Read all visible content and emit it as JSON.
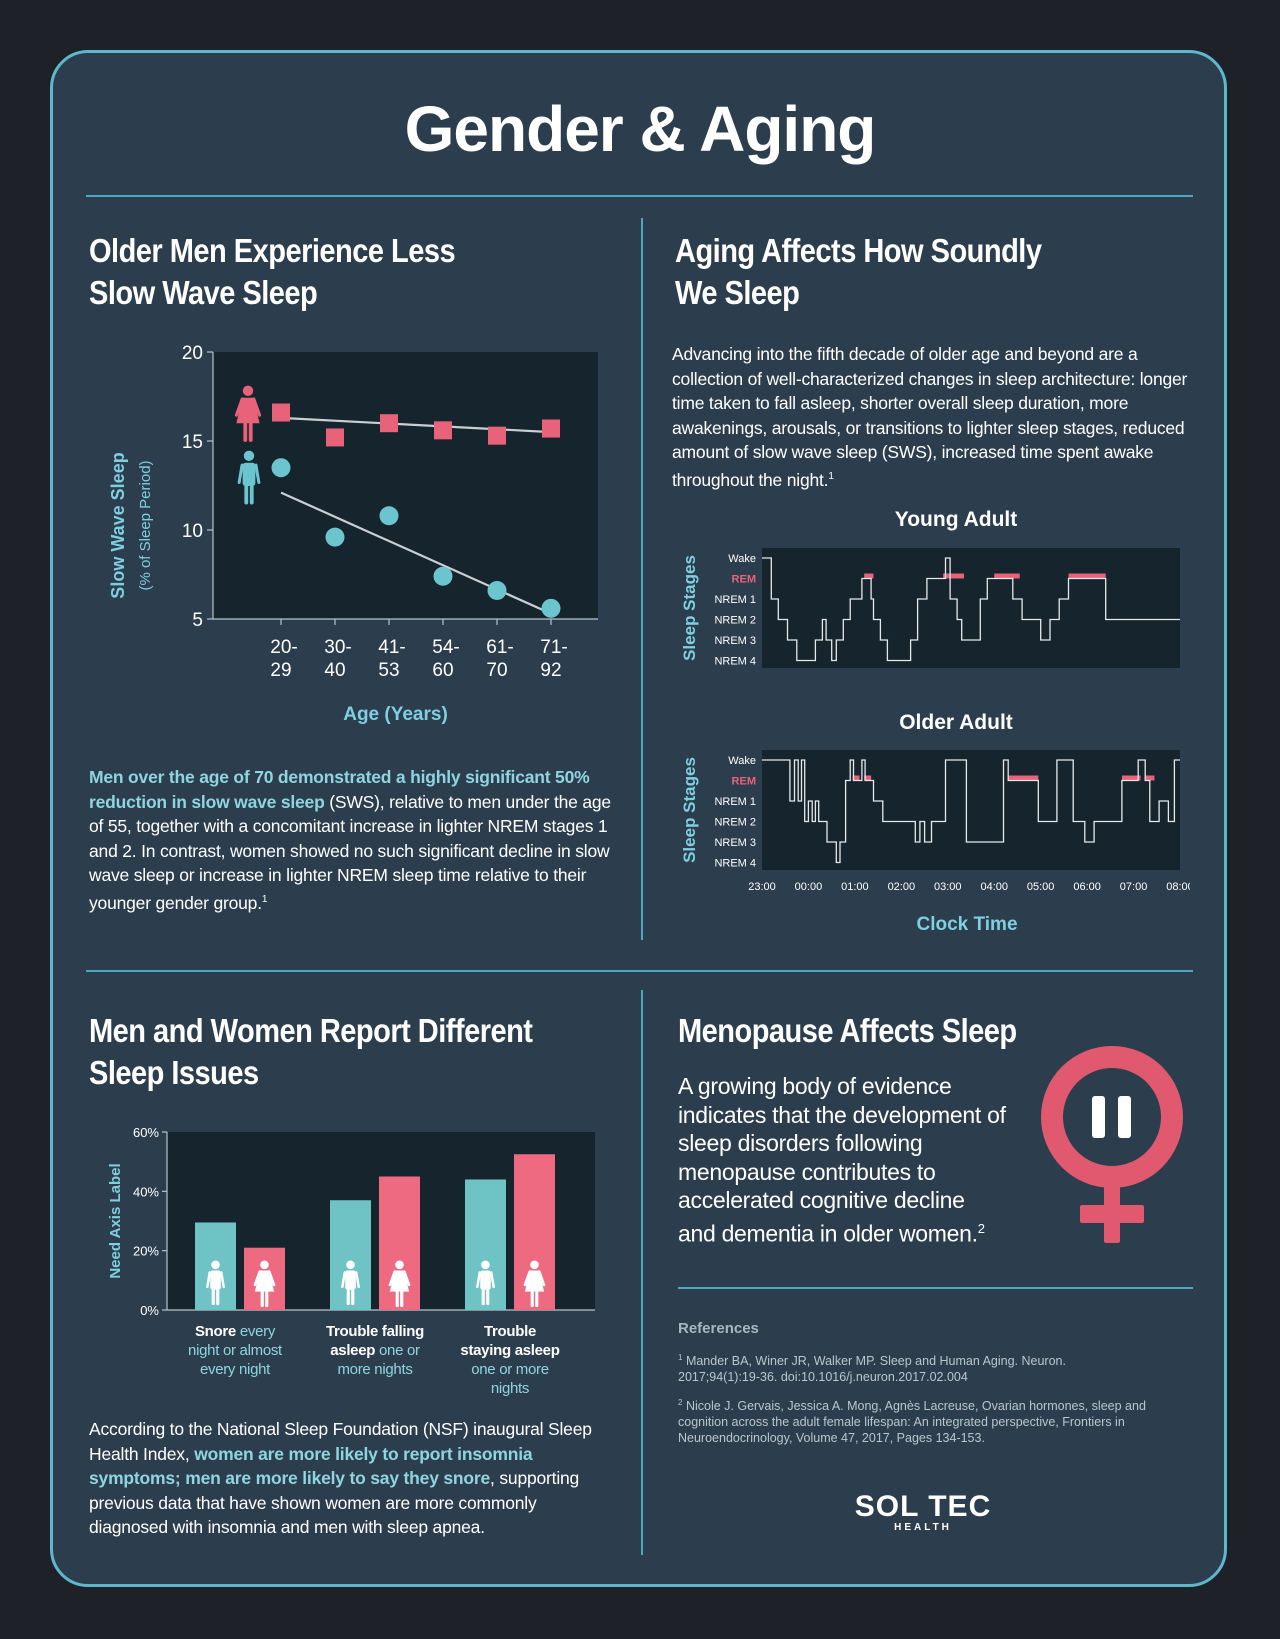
{
  "page_title": "Gender & Aging",
  "sections": {
    "sws": {
      "title_line1": "Older Men Experience Less",
      "title_line2": "Slow Wave Sleep",
      "bold": "Men over the age of 70 demonstrated a highly significant 50% reduction in slow wave sleep",
      "rest": " (SWS), relative to men under the age of 55, together with a concomitant increase in lighter NREM stages 1 and 2. In contrast, women showed no such significant decline in slow wave sleep or increase in lighter NREM sleep time relative to their younger gender group.",
      "sup": "1"
    },
    "aging": {
      "title_line1": "Aging Affects How Soundly",
      "title_line2": "We Sleep",
      "text": "Advancing into the fifth decade of older age and beyond are a collection of well-characterized changes in sleep architecture: longer time taken to fall asleep, shorter overall sleep duration, more awakenings, arousals, or transitions to lighter sleep stages, reduced amount of slow wave sleep (SWS), increased time spent awake throughout the night.",
      "sup": "1"
    },
    "issues": {
      "title_line1": "Men and Women Report Different",
      "title_line2": "Sleep Issues",
      "pre": "According to the National Sleep Foundation (NSF) inaugural Sleep Health Index, ",
      "bold": "women are more likely to report insomnia symptoms; men are more likely to say they snore",
      "post": ", supporting previous data that have shown women are more commonly diagnosed with insomnia and men with sleep apnea."
    },
    "meno": {
      "title": "Menopause Affects Sleep",
      "text": "A growing body of evidence indicates that the development of sleep disorders following menopause contributes to accelerated cognitive decline and dementia in older women.",
      "sup": "2"
    }
  },
  "references": {
    "title": "References",
    "items": [
      {
        "num": "1",
        "text": "Mander BA, Winer JR, Walker MP. Sleep and Human Aging. Neuron. 2017;94(1):19-36. doi:10.1016/j.neuron.2017.02.004"
      },
      {
        "num": "2",
        "text": "Nicole J. Gervais, Jessica A. Mong, Agnès Lacreuse, Ovarian hormones, sleep and cognition across the adult female lifespan: An integrated perspective, Frontiers in Neuroendocrinology, Volume 47, 2017, Pages 134-153."
      }
    ]
  },
  "logo": {
    "main": "SOL TEC",
    "sub": "HEALTH"
  },
  "colors": {
    "female": "#e8637a",
    "male": "#6cc4cf",
    "bar_male": "#6fc3c4",
    "bar_female": "#ee6a80",
    "plot_bg": "#15242d",
    "card": "#2c3e4d",
    "accent": "#4ea7bd"
  },
  "chart_data": [
    {
      "type": "scatter",
      "ylabel": "Slow Wave Sleep",
      "ylabel_sub": "(% of Sleep Period)",
      "xlabel": "Age (Years)",
      "ylim": [
        5,
        20
      ],
      "yticks": [
        "5",
        "10",
        "15",
        "20"
      ],
      "categories": [
        {
          "top": "20-",
          "bottom": "29"
        },
        {
          "top": "30-",
          "bottom": "40"
        },
        {
          "top": "41-",
          "bottom": "53"
        },
        {
          "top": "54-",
          "bottom": "60"
        },
        {
          "top": "61-",
          "bottom": "70"
        },
        {
          "top": "71-",
          "bottom": "92"
        }
      ],
      "series": [
        {
          "key": "female",
          "values": [
            16.6,
            15.2,
            16.0,
            15.6,
            15.3,
            15.7
          ],
          "trend": [
            16.3,
            15.5
          ]
        },
        {
          "key": "male",
          "values": [
            13.5,
            9.6,
            10.8,
            7.4,
            6.6,
            5.6
          ],
          "trend": [
            12.1,
            5.3
          ]
        }
      ]
    },
    {
      "type": "line",
      "title": "Young Adult",
      "ylabel": "Sleep Stages",
      "stages": [
        "Wake",
        "REM",
        "NREM 1",
        "NREM 2",
        "NREM 3",
        "NREM 4"
      ],
      "x_start": 23.0,
      "x_end": 32.0,
      "steps": [
        [
          23.0,
          0
        ],
        [
          23.2,
          0
        ],
        [
          23.2,
          2
        ],
        [
          23.35,
          2
        ],
        [
          23.35,
          3
        ],
        [
          23.55,
          3
        ],
        [
          23.55,
          4
        ],
        [
          23.75,
          4
        ],
        [
          23.75,
          5
        ],
        [
          24.15,
          5
        ],
        [
          24.15,
          4
        ],
        [
          24.3,
          4
        ],
        [
          24.3,
          3
        ],
        [
          24.38,
          3
        ],
        [
          24.38,
          4
        ],
        [
          24.5,
          4
        ],
        [
          24.5,
          5
        ],
        [
          24.6,
          5
        ],
        [
          24.6,
          4
        ],
        [
          24.75,
          4
        ],
        [
          24.75,
          3
        ],
        [
          24.9,
          3
        ],
        [
          24.9,
          2
        ],
        [
          25.15,
          2
        ],
        [
          25.15,
          1
        ],
        [
          25.35,
          1
        ],
        [
          25.35,
          2
        ],
        [
          25.4,
          2
        ],
        [
          25.4,
          3
        ],
        [
          25.55,
          3
        ],
        [
          25.55,
          4
        ],
        [
          25.7,
          4
        ],
        [
          25.7,
          5
        ],
        [
          26.2,
          5
        ],
        [
          26.2,
          4
        ],
        [
          26.35,
          4
        ],
        [
          26.35,
          2
        ],
        [
          26.55,
          2
        ],
        [
          26.55,
          1
        ],
        [
          26.95,
          1
        ],
        [
          26.95,
          0
        ],
        [
          27.05,
          0
        ],
        [
          27.05,
          2
        ],
        [
          27.2,
          2
        ],
        [
          27.2,
          3
        ],
        [
          27.3,
          3
        ],
        [
          27.3,
          4
        ],
        [
          27.7,
          4
        ],
        [
          27.7,
          2
        ],
        [
          27.85,
          2
        ],
        [
          27.85,
          1
        ],
        [
          28.4,
          1
        ],
        [
          28.4,
          2
        ],
        [
          28.6,
          2
        ],
        [
          28.6,
          3
        ],
        [
          29.0,
          3
        ],
        [
          29.0,
          4
        ],
        [
          29.2,
          4
        ],
        [
          29.2,
          3
        ],
        [
          29.4,
          3
        ],
        [
          29.4,
          2
        ],
        [
          29.6,
          2
        ],
        [
          29.6,
          1
        ],
        [
          30.4,
          1
        ],
        [
          30.4,
          3
        ],
        [
          32.0,
          3
        ]
      ],
      "rem": [
        [
          25.2,
          25.4
        ],
        [
          26.9,
          27.35
        ],
        [
          28.0,
          28.55
        ],
        [
          29.6,
          30.4
        ]
      ]
    },
    {
      "type": "line",
      "title": "Older Adult",
      "ylabel": "Sleep Stages",
      "xlabel": "Clock Time",
      "stages": [
        "Wake",
        "REM",
        "NREM 1",
        "NREM 2",
        "NREM 3",
        "NREM 4"
      ],
      "x_start": 23.0,
      "x_end": 32.0,
      "xticks": [
        "23:00",
        "00:00",
        "01:00",
        "02:00",
        "03:00",
        "04:00",
        "05:00",
        "06:00",
        "07:00",
        "08:00"
      ],
      "steps": [
        [
          23.0,
          0
        ],
        [
          23.6,
          0
        ],
        [
          23.6,
          2
        ],
        [
          23.7,
          2
        ],
        [
          23.7,
          0
        ],
        [
          23.78,
          0
        ],
        [
          23.78,
          2
        ],
        [
          23.85,
          2
        ],
        [
          23.85,
          0
        ],
        [
          23.92,
          0
        ],
        [
          23.92,
          3
        ],
        [
          24.0,
          3
        ],
        [
          24.0,
          2
        ],
        [
          24.08,
          2
        ],
        [
          24.08,
          3
        ],
        [
          24.15,
          3
        ],
        [
          24.15,
          2
        ],
        [
          24.22,
          2
        ],
        [
          24.22,
          3
        ],
        [
          24.4,
          3
        ],
        [
          24.4,
          4
        ],
        [
          24.6,
          4
        ],
        [
          24.6,
          5
        ],
        [
          24.68,
          5
        ],
        [
          24.68,
          4
        ],
        [
          24.8,
          4
        ],
        [
          24.8,
          1
        ],
        [
          24.9,
          1
        ],
        [
          24.9,
          0
        ],
        [
          24.97,
          0
        ],
        [
          24.97,
          1
        ],
        [
          25.15,
          1
        ],
        [
          25.15,
          0
        ],
        [
          25.22,
          0
        ],
        [
          25.22,
          1
        ],
        [
          25.4,
          1
        ],
        [
          25.4,
          2
        ],
        [
          25.6,
          2
        ],
        [
          25.6,
          3
        ],
        [
          26.3,
          3
        ],
        [
          26.3,
          4
        ],
        [
          26.4,
          4
        ],
        [
          26.4,
          3
        ],
        [
          26.5,
          3
        ],
        [
          26.5,
          4
        ],
        [
          26.65,
          4
        ],
        [
          26.65,
          3
        ],
        [
          26.95,
          3
        ],
        [
          26.95,
          0
        ],
        [
          27.4,
          0
        ],
        [
          27.4,
          4
        ],
        [
          28.2,
          4
        ],
        [
          28.2,
          0
        ],
        [
          28.3,
          0
        ],
        [
          28.3,
          1
        ],
        [
          28.95,
          1
        ],
        [
          28.95,
          3
        ],
        [
          29.35,
          3
        ],
        [
          29.35,
          0
        ],
        [
          29.7,
          0
        ],
        [
          29.7,
          3
        ],
        [
          29.95,
          3
        ],
        [
          29.95,
          4
        ],
        [
          30.15,
          4
        ],
        [
          30.15,
          3
        ],
        [
          30.75,
          3
        ],
        [
          30.75,
          1
        ],
        [
          31.1,
          1
        ],
        [
          31.1,
          0
        ],
        [
          31.25,
          0
        ],
        [
          31.25,
          1
        ],
        [
          31.35,
          1
        ],
        [
          31.35,
          3
        ],
        [
          31.55,
          3
        ],
        [
          31.55,
          2
        ],
        [
          31.75,
          2
        ],
        [
          31.75,
          3
        ],
        [
          31.88,
          3
        ],
        [
          31.88,
          0
        ],
        [
          32.0,
          0
        ]
      ],
      "rem": [
        [
          24.95,
          25.1
        ],
        [
          25.2,
          25.35
        ],
        [
          28.3,
          28.95
        ],
        [
          30.75,
          31.15
        ],
        [
          31.25,
          31.45
        ]
      ]
    },
    {
      "type": "bar",
      "ylabel": "Need Axis Label",
      "ylim": [
        0,
        60
      ],
      "yticks": [
        "0%",
        "20%",
        "40%",
        "60%"
      ],
      "categories": [
        {
          "bold": "Snore",
          "rest": "every night or almost every night"
        },
        {
          "bold": "Trouble falling asleep",
          "rest": "one or more nights"
        },
        {
          "bold": "Trouble staying asleep",
          "rest": "one or more nights"
        }
      ],
      "series": [
        {
          "key": "male",
          "values": [
            29.5,
            37,
            44
          ]
        },
        {
          "key": "female",
          "values": [
            21,
            45,
            52.5
          ]
        }
      ]
    }
  ]
}
